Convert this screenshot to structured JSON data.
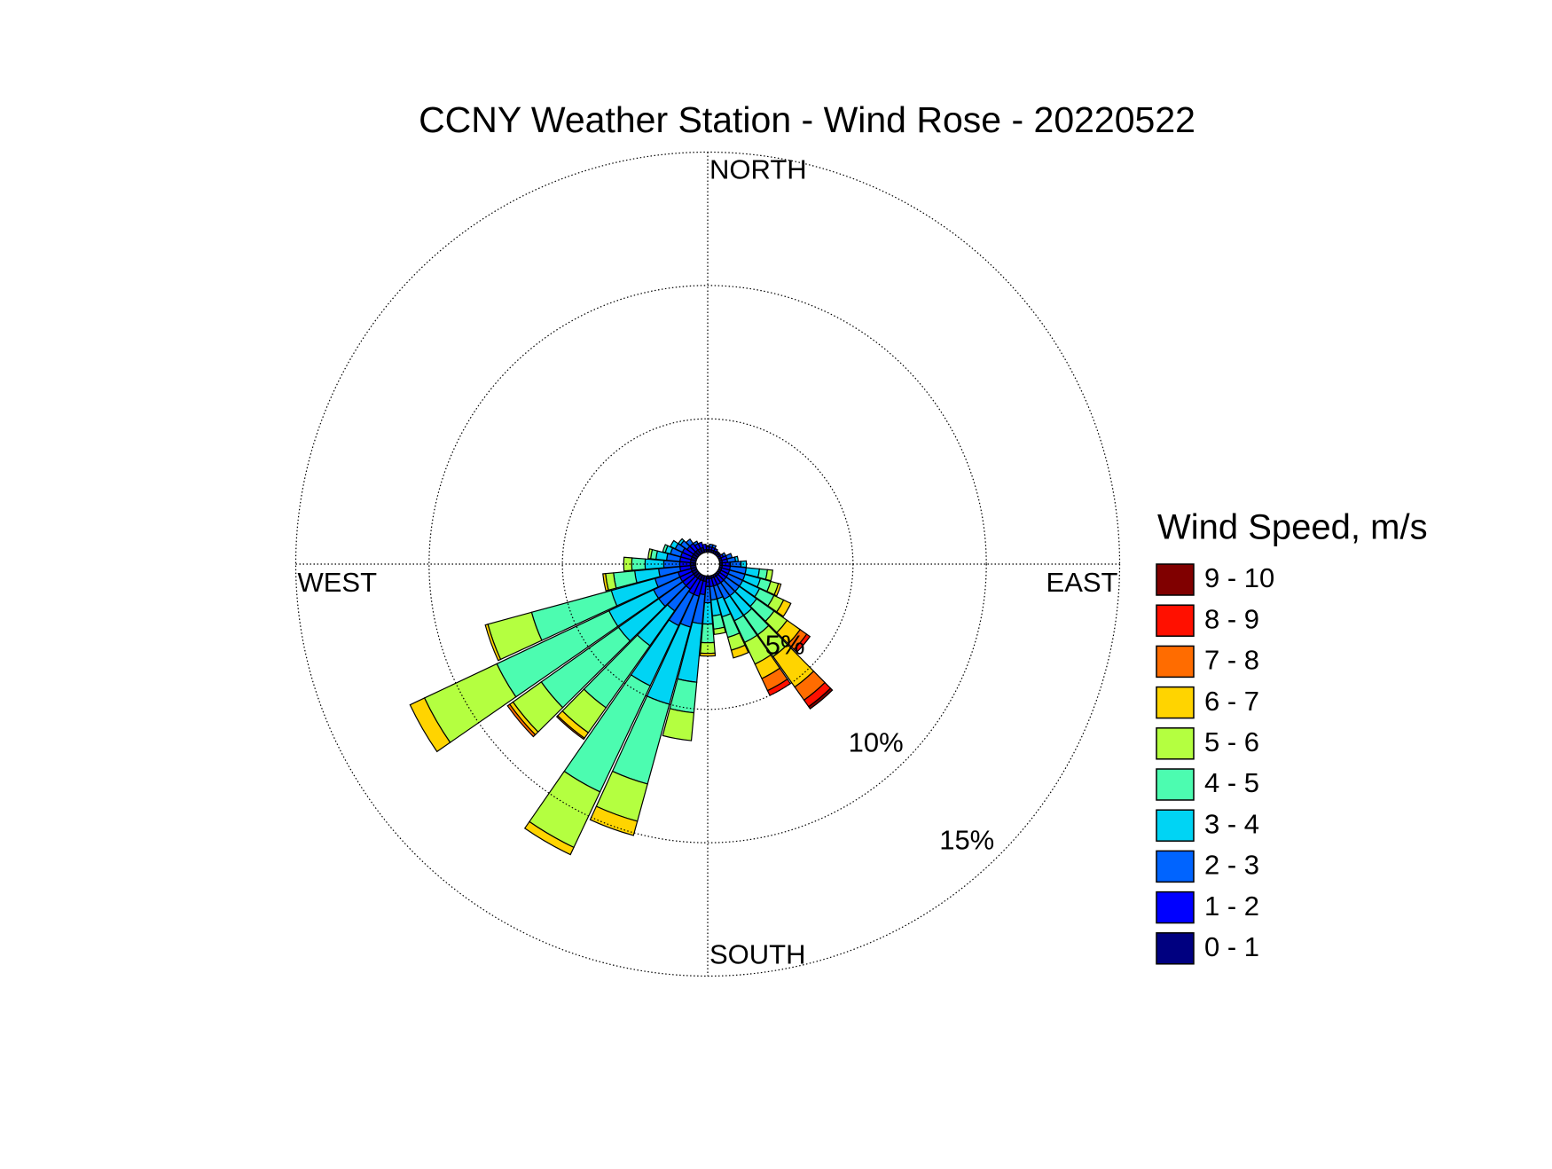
{
  "chart_data": {
    "type": "windrose",
    "title": "CCNY Weather Station - Wind Rose - 20220522",
    "direction_labels": {
      "north": "NORTH",
      "east": "EAST",
      "south": "SOUTH",
      "west": "WEST"
    },
    "legend_title": "Wind Speed, m/s",
    "x": [
      0,
      10,
      20,
      30,
      40,
      50,
      60,
      70,
      80,
      90,
      100,
      110,
      120,
      130,
      140,
      150,
      160,
      170,
      180,
      190,
      200,
      210,
      220,
      230,
      240,
      250,
      260,
      270,
      280,
      290,
      300,
      310,
      320,
      330,
      340,
      350
    ],
    "ylim": [
      0,
      15
    ],
    "yticks": [
      {
        "value": 5,
        "label": "5%"
      },
      {
        "value": 10,
        "label": "10%"
      },
      {
        "value": 15,
        "label": "15%"
      }
    ],
    "grid": true,
    "series": [
      {
        "name": "0 - 1",
        "color": "#000080",
        "values": [
          0.1,
          0.1,
          0.1,
          0.1,
          0.1,
          0.1,
          0.1,
          0.1,
          0.1,
          0.1,
          0.1,
          0.1,
          0.1,
          0.1,
          0.1,
          0.1,
          0.1,
          0.1,
          0.1,
          0.2,
          0.2,
          0.2,
          0.2,
          0.2,
          0.2,
          0.2,
          0.2,
          0.2,
          0.2,
          0.2,
          0.2,
          0.2,
          0.2,
          0.2,
          0.2,
          0.1
        ]
      },
      {
        "name": "1 - 2",
        "color": "#0000ff",
        "values": [
          0.1,
          0.1,
          0.1,
          0.1,
          0.05,
          0.05,
          0.1,
          0.2,
          0.2,
          0.3,
          0.3,
          0.3,
          0.3,
          0.3,
          0.3,
          0.3,
          0.3,
          0.3,
          0.3,
          0.5,
          0.6,
          0.6,
          0.5,
          0.5,
          0.5,
          0.5,
          0.4,
          0.4,
          0.4,
          0.4,
          0.4,
          0.3,
          0.3,
          0.2,
          0.2,
          0.2
        ]
      },
      {
        "name": "2 - 3",
        "color": "#0064ff",
        "values": [
          0.05,
          0.1,
          0.1,
          0,
          0,
          0,
          0.1,
          0.2,
          0.3,
          0.4,
          0.6,
          0.6,
          0.6,
          0.6,
          0.6,
          0.6,
          0.5,
          0.5,
          0.6,
          1.1,
          1.2,
          1.3,
          1.0,
          1.1,
          1.1,
          0.9,
          0.8,
          0.6,
          0.5,
          0.4,
          0.3,
          0.3,
          0.2,
          0.1,
          0,
          0
        ]
      },
      {
        "name": "3 - 4",
        "color": "#00d4f4",
        "values": [
          0,
          0,
          0,
          0,
          0,
          0,
          0,
          0,
          0.1,
          0.2,
          0.5,
          0.6,
          0.7,
          0.8,
          0.9,
          0.9,
          0.7,
          0.6,
          0.8,
          2.2,
          3.0,
          2.5,
          1.6,
          1.85,
          1.85,
          1.7,
          0.9,
          0.7,
          0.4,
          0.2,
          0.2,
          0.1,
          0,
          0,
          0,
          0
        ]
      },
      {
        "name": "4 - 5",
        "color": "#4cfcb0",
        "values": [
          0,
          0,
          0,
          0,
          0,
          0,
          0,
          0,
          0,
          0,
          0.3,
          0.4,
          0.6,
          0.8,
          0.9,
          0.9,
          0.8,
          0.5,
          0.7,
          1.15,
          3.1,
          4.4,
          2.85,
          3.55,
          4.65,
          3.1,
          0.8,
          0.5,
          0.2,
          0.1,
          0,
          0,
          0,
          0,
          0,
          0
        ]
      },
      {
        "name": "5 - 6",
        "color": "#b4ff40",
        "values": [
          0,
          0,
          0,
          0,
          0,
          0,
          0,
          0,
          0,
          0,
          0.2,
          0.3,
          0.4,
          0.6,
          1.0,
          0.9,
          0.5,
          0.2,
          0.4,
          1.05,
          1.45,
          2.3,
          1.15,
          1.3,
          3.0,
          1.7,
          0.3,
          0.3,
          0.1,
          0,
          0,
          0,
          0,
          0,
          0,
          0
        ]
      },
      {
        "name": "6 - 7",
        "color": "#ffd400",
        "values": [
          0,
          0,
          0,
          0,
          0,
          0,
          0,
          0,
          0,
          0,
          0,
          0.1,
          0.3,
          0.6,
          1.4,
          0.6,
          0.3,
          0,
          0.1,
          0,
          0.55,
          0.3,
          0.25,
          0.15,
          0.6,
          0.1,
          0.1,
          0,
          0,
          0,
          0,
          0,
          0,
          0,
          0,
          0
        ]
      },
      {
        "name": "7 - 8",
        "color": "#ff6c00",
        "values": [
          0,
          0,
          0,
          0,
          0,
          0,
          0,
          0,
          0,
          0,
          0,
          0,
          0,
          0.3,
          0.6,
          0.5,
          0,
          0,
          0,
          0,
          0,
          0,
          0.05,
          0.1,
          0,
          0,
          0,
          0,
          0,
          0,
          0,
          0,
          0,
          0,
          0,
          0
        ]
      },
      {
        "name": "8 - 9",
        "color": "#ff1000",
        "values": [
          0,
          0,
          0,
          0,
          0,
          0,
          0,
          0,
          0,
          0,
          0,
          0,
          0,
          0.15,
          0.3,
          0.2,
          0,
          0,
          0,
          0,
          0,
          0,
          0,
          0,
          0,
          0,
          0,
          0,
          0,
          0,
          0,
          0,
          0,
          0,
          0,
          0
        ]
      },
      {
        "name": "9 - 10",
        "color": "#800000",
        "values": [
          0,
          0,
          0,
          0,
          0,
          0,
          0,
          0,
          0,
          0,
          0,
          0,
          0,
          0,
          0.1,
          0,
          0,
          0,
          0,
          0,
          0,
          0,
          0,
          0,
          0,
          0,
          0,
          0,
          0,
          0,
          0,
          0,
          0,
          0,
          0,
          0
        ]
      }
    ]
  }
}
